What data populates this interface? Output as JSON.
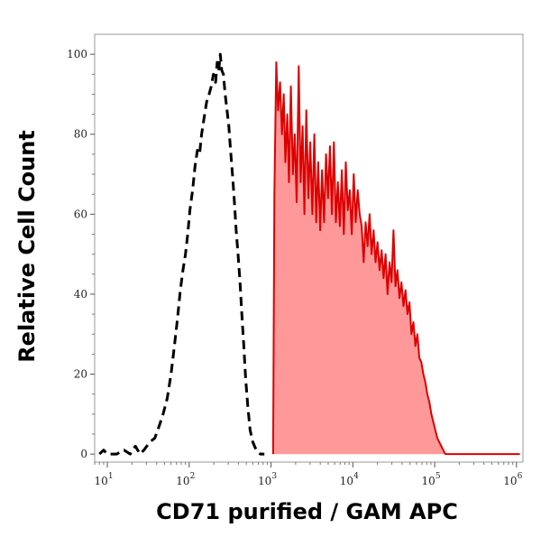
{
  "chart_data": {
    "type": "area",
    "title": "",
    "xlabel": "CD71 purified / GAM APC",
    "ylabel": "Relative Cell Count",
    "x_scale": "log",
    "xlim": [
      7,
      1200000
    ],
    "ylim": [
      -2,
      105
    ],
    "x_ticks": [
      {
        "base": "10",
        "exp": "1",
        "value": 10
      },
      {
        "base": "10",
        "exp": "2",
        "value": 100
      },
      {
        "base": "10",
        "exp": "3",
        "value": 1000
      },
      {
        "base": "10",
        "exp": "4",
        "value": 10000
      },
      {
        "base": "10",
        "exp": "5",
        "value": 100000
      },
      {
        "base": "10",
        "exp": "6",
        "value": 1000000
      }
    ],
    "y_ticks": [
      {
        "label": "0",
        "value": 0
      },
      {
        "label": "20",
        "value": 20
      },
      {
        "label": "40",
        "value": 40
      },
      {
        "label": "60",
        "value": 60
      },
      {
        "label": "80",
        "value": 80
      },
      {
        "label": "100",
        "value": 100
      }
    ],
    "grid": false,
    "series": [
      {
        "style": "dashed",
        "color": "#000000",
        "fill": "none",
        "points": [
          [
            8,
            0
          ],
          [
            9,
            1
          ],
          [
            10,
            0
          ],
          [
            13,
            0
          ],
          [
            16,
            1
          ],
          [
            19,
            0
          ],
          [
            22,
            2
          ],
          [
            25,
            0
          ],
          [
            28,
            1
          ],
          [
            33,
            3
          ],
          [
            38,
            4
          ],
          [
            43,
            7
          ],
          [
            48,
            10
          ],
          [
            54,
            14
          ],
          [
            60,
            20
          ],
          [
            66,
            27
          ],
          [
            72,
            34
          ],
          [
            78,
            41
          ],
          [
            84,
            46
          ],
          [
            90,
            50
          ],
          [
            96,
            55
          ],
          [
            102,
            61
          ],
          [
            110,
            66
          ],
          [
            118,
            72
          ],
          [
            126,
            76
          ],
          [
            134,
            75
          ],
          [
            142,
            80
          ],
          [
            152,
            84
          ],
          [
            163,
            88
          ],
          [
            175,
            90
          ],
          [
            186,
            92
          ],
          [
            198,
            95
          ],
          [
            210,
            93
          ],
          [
            220,
            98
          ],
          [
            230,
            96
          ],
          [
            240,
            100
          ],
          [
            250,
            96
          ],
          [
            262,
            95
          ],
          [
            275,
            90
          ],
          [
            290,
            86
          ],
          [
            305,
            82
          ],
          [
            320,
            76
          ],
          [
            338,
            70
          ],
          [
            355,
            64
          ],
          [
            375,
            56
          ],
          [
            395,
            50
          ],
          [
            418,
            43
          ],
          [
            440,
            35
          ],
          [
            465,
            27
          ],
          [
            490,
            19
          ],
          [
            520,
            12
          ],
          [
            555,
            6
          ],
          [
            600,
            3
          ],
          [
            660,
            1
          ],
          [
            740,
            0
          ],
          [
            830,
            0
          ]
        ]
      },
      {
        "style": "solid",
        "color": "#dd0000",
        "fill": "#ff9999",
        "points": [
          [
            1060,
            0
          ],
          [
            1100,
            65
          ],
          [
            1160,
            98
          ],
          [
            1220,
            86
          ],
          [
            1290,
            93
          ],
          [
            1360,
            80
          ],
          [
            1430,
            90
          ],
          [
            1500,
            73
          ],
          [
            1580,
            85
          ],
          [
            1660,
            68
          ],
          [
            1750,
            92
          ],
          [
            1850,
            70
          ],
          [
            1950,
            80
          ],
          [
            2060,
            63
          ],
          [
            2180,
            97
          ],
          [
            2300,
            68
          ],
          [
            2430,
            82
          ],
          [
            2560,
            60
          ],
          [
            2700,
            86
          ],
          [
            2860,
            64
          ],
          [
            3020,
            78
          ],
          [
            3200,
            60
          ],
          [
            3380,
            80
          ],
          [
            3570,
            58
          ],
          [
            3770,
            73
          ],
          [
            3990,
            56
          ],
          [
            4210,
            71
          ],
          [
            4450,
            58
          ],
          [
            4700,
            75
          ],
          [
            4970,
            64
          ],
          [
            5250,
            77
          ],
          [
            5550,
            60
          ],
          [
            5870,
            78
          ],
          [
            6200,
            58
          ],
          [
            6560,
            68
          ],
          [
            6930,
            57
          ],
          [
            7330,
            71
          ],
          [
            7750,
            55
          ],
          [
            8200,
            73
          ],
          [
            8670,
            61
          ],
          [
            9170,
            66
          ],
          [
            9700,
            55
          ],
          [
            10250,
            70
          ],
          [
            10840,
            58
          ],
          [
            11460,
            66
          ],
          [
            12120,
            60
          ],
          [
            12820,
            57
          ],
          [
            13560,
            48
          ],
          [
            14340,
            58
          ],
          [
            15160,
            52
          ],
          [
            16040,
            60
          ],
          [
            16960,
            50
          ],
          [
            17940,
            56
          ],
          [
            18970,
            48
          ],
          [
            20060,
            53
          ],
          [
            21220,
            46
          ],
          [
            22440,
            51
          ],
          [
            23740,
            44
          ],
          [
            25100,
            50
          ],
          [
            26550,
            40
          ],
          [
            28080,
            48
          ],
          [
            29700,
            43
          ],
          [
            31410,
            56
          ],
          [
            33220,
            42
          ],
          [
            35130,
            46
          ],
          [
            37150,
            39
          ],
          [
            39290,
            43
          ],
          [
            41560,
            37
          ],
          [
            43950,
            41
          ],
          [
            46480,
            35
          ],
          [
            49160,
            38
          ],
          [
            51990,
            30
          ],
          [
            54990,
            33
          ],
          [
            58150,
            27
          ],
          [
            61500,
            30
          ],
          [
            65050,
            24
          ],
          [
            68800,
            23
          ],
          [
            72760,
            20
          ],
          [
            76950,
            18
          ],
          [
            81380,
            15
          ],
          [
            86070,
            13
          ],
          [
            91030,
            10
          ],
          [
            96270,
            8
          ],
          [
            101820,
            6
          ],
          [
            107690,
            4
          ],
          [
            113890,
            3
          ],
          [
            120450,
            2
          ],
          [
            127390,
            1
          ],
          [
            134730,
            0
          ],
          [
            150000,
            0
          ],
          [
            200000,
            0
          ],
          [
            300000,
            0
          ],
          [
            450000,
            0
          ],
          [
            700000,
            0
          ],
          [
            1100000,
            0
          ]
        ]
      }
    ]
  }
}
